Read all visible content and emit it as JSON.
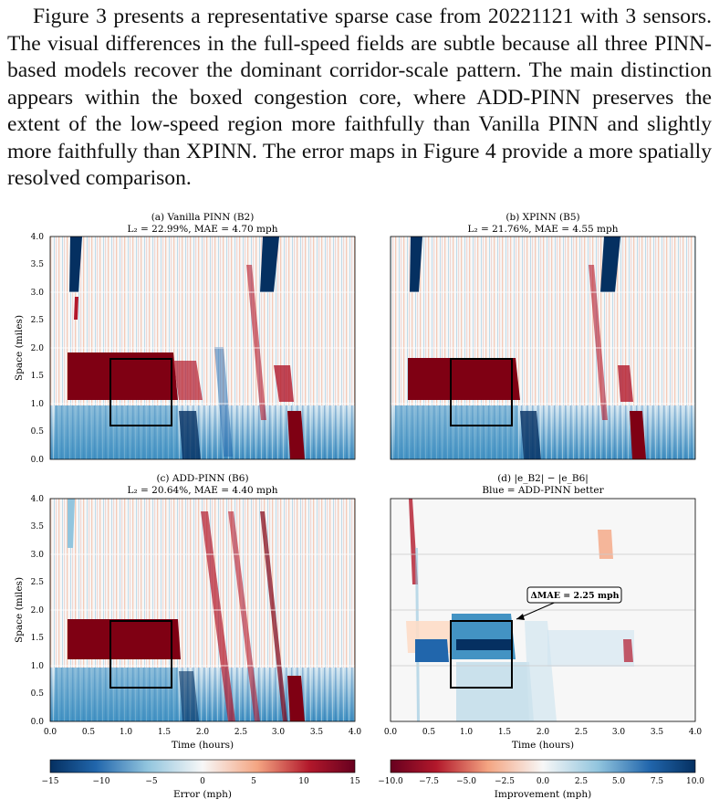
{
  "paragraph": "Figure 3 presents a representative sparse case from 20221121 with 3 sen­sors. The visual differences in the full-speed fields are subtle because all three PINN-based models recover the dominant corridor-scale pattern. The main distinction appears within the boxed congestion core, where ADD-PINN pre­serves the extent of the low-speed region more faithfully than Vanilla PINN and slightly more faithfully than XPINN. The error maps in Figure 4 provide a more spatially resolved comparison.",
  "panels": [
    {
      "title": "(a) Vanilla PINN (B2)",
      "metrics": "L₂ = 22.99%,  MAE = 4.70 mph"
    },
    {
      "title": "(b) XPINN (B5)",
      "metrics": "L₂ = 21.76%,  MAE = 4.55 mph"
    },
    {
      "title": "(c) ADD-PINN (B6)",
      "metrics": "L₂ = 20.64%,  MAE = 4.40 mph"
    },
    {
      "title": "(d) |e_B2| − |e_B6|",
      "metrics": "Blue = ADD-PINN better"
    }
  ],
  "annotation": "ΔMAE = 2.25 mph",
  "axes": {
    "xlabel": "Time (hours)",
    "ylabel": "Space (miles)",
    "x_ticks": [
      "0.0",
      "0.5",
      "1.0",
      "1.5",
      "2.0",
      "2.5",
      "3.0",
      "3.5",
      "4.0"
    ],
    "y_ticks": [
      "0.0",
      "0.5",
      "1.0",
      "1.5",
      "2.0",
      "2.5",
      "3.0",
      "3.5",
      "4.0"
    ]
  },
  "colorbars": [
    {
      "label": "Error (mph)",
      "ticks": [
        "−15",
        "−10",
        "−5",
        "0",
        "5",
        "10",
        "15"
      ],
      "range": [
        -15,
        15
      ]
    },
    {
      "label": "Improvement (mph)",
      "ticks": [
        "−10.0",
        "−7.5",
        "−5.0",
        "−2.5",
        "0.0",
        "2.5",
        "5.0",
        "7.5",
        "10.0"
      ],
      "range": [
        -10,
        10
      ]
    }
  ],
  "colors": {
    "dark_red": "#7f0013",
    "red": "#d6604d",
    "white": "#f7f7f7",
    "blue": "#4393c3",
    "dark_blue": "#053061"
  }
}
